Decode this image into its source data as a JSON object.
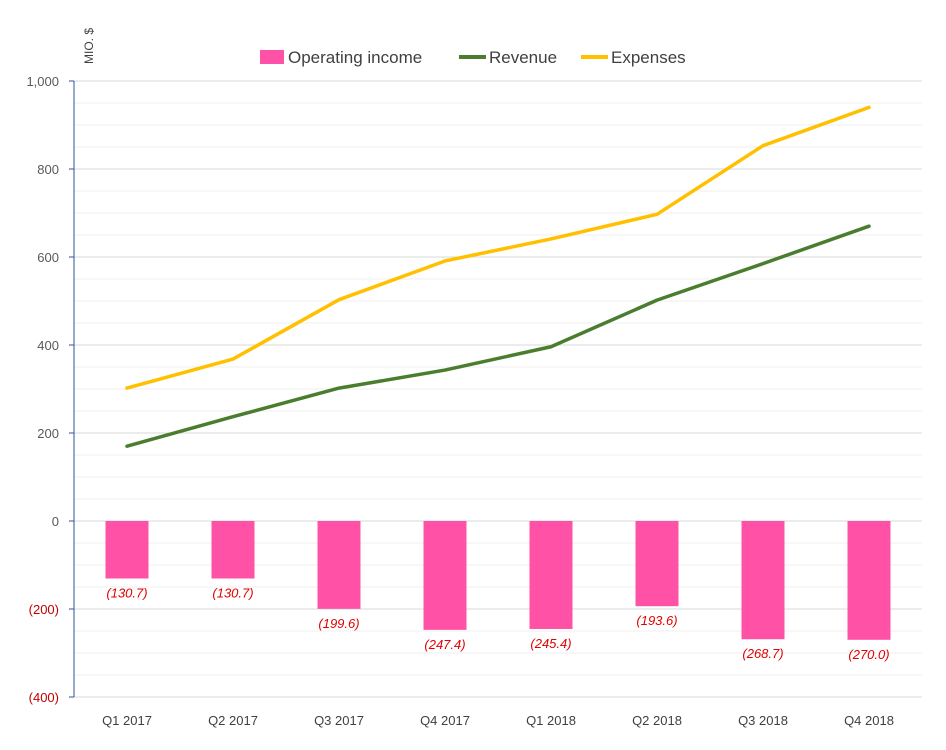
{
  "chart_data": {
    "type": "bar+line",
    "unit_label": "MIO. $",
    "categories": [
      "Q1 2017",
      "Q2 2017",
      "Q3 2017",
      "Q4 2017",
      "Q1 2018",
      "Q2 2018",
      "Q3 2018",
      "Q4 2018"
    ],
    "ylim": [
      -400,
      1000
    ],
    "yticks": [
      {
        "value": 1000,
        "label": "1,000"
      },
      {
        "value": 800,
        "label": "800"
      },
      {
        "value": 600,
        "label": "600"
      },
      {
        "value": 400,
        "label": "400"
      },
      {
        "value": 200,
        "label": "200"
      },
      {
        "value": 0,
        "label": "0"
      },
      {
        "value": -200,
        "label": "(200)"
      },
      {
        "value": -400,
        "label": "(400)"
      }
    ],
    "minor_grid_step": 50,
    "legend_position": "top-center",
    "series": [
      {
        "name": "Operating income",
        "type": "bar",
        "color": "#ff52a6",
        "values": [
          -130.7,
          -130.7,
          -199.6,
          -247.4,
          -245.4,
          -193.6,
          -268.7,
          -270.0
        ],
        "labels": [
          "(130.7)",
          "(130.7)",
          "(199.6)",
          "(247.4)",
          "(245.4)",
          "(193.6)",
          "(268.7)",
          "(270.0)"
        ]
      },
      {
        "name": "Revenue",
        "type": "line",
        "color": "#4a7d2e",
        "values": [
          170,
          237,
          302,
          343,
          396,
          502,
          585,
          670
        ]
      },
      {
        "name": "Expenses",
        "type": "line",
        "color": "#ffc000",
        "values": [
          302,
          368,
          503,
          591,
          641,
          697,
          853,
          940
        ]
      }
    ]
  }
}
